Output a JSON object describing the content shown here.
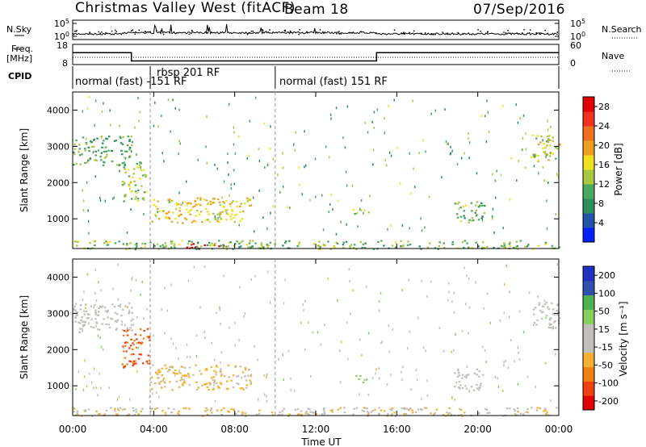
{
  "header": {
    "station": "Christmas Valley West (fitACF)",
    "beam": "Beam 18",
    "date": "07/Sep/2016"
  },
  "left_labels": {
    "nsky": "N.Sky",
    "freq_line1": "Freq.",
    "freq_line2": "[MHz]",
    "cpid": "CPID"
  },
  "right_labels": {
    "nsearch": "N.Search",
    "nave": "Nave"
  },
  "cpid_segments": [
    {
      "label": "normal (fast) -151 RF",
      "start": 0.5,
      "end": 3.83
    },
    {
      "label": "rbsp 201 RF",
      "start": 3.83,
      "end": 10.0
    },
    {
      "label": "normal (fast) 151 RF",
      "start": 10.0,
      "end": 24.0
    }
  ],
  "colors": {
    "power_scale": [
      "#0020ff",
      "#1f55a8",
      "#2f8e5e",
      "#4aa860",
      "#a8c840",
      "#f0e020",
      "#f0a020",
      "#f07020",
      "#f03020",
      "#e00000"
    ],
    "velocity_scale": [
      "#e00000",
      "#f04010",
      "#f08010",
      "#f8b030",
      "#c0c0b8",
      "#c0c0b8",
      "#88d060",
      "#50b050",
      "#3050b0",
      "#2030c0"
    ]
  },
  "chart_data": [
    {
      "panel": "noise",
      "type": "line",
      "left_axis": {
        "label": "N.Sky",
        "ticks": [
          "10^5",
          "10^0"
        ]
      },
      "right_axis": {
        "label": "N.Search",
        "ticks": [
          "10^5",
          "10^0"
        ]
      }
    },
    {
      "panel": "frequency",
      "type": "line",
      "left_axis": {
        "label": "Freq. [MHz]",
        "ticks": [
          18,
          8
        ]
      },
      "right_axis": {
        "label": "Nave",
        "ticks": [
          60,
          0
        ]
      },
      "series": [
        {
          "name": "Freq.",
          "x": [
            0,
            2.9,
            2.9,
            15.0,
            15.0,
            24.0
          ],
          "y": [
            14,
            14,
            9.5,
            9.5,
            14,
            14
          ]
        }
      ]
    },
    {
      "panel": "power",
      "type": "heatmap",
      "xlabel": "",
      "ylabel": "Slant Range [km]",
      "yticks": [
        1000,
        2000,
        3000,
        4000
      ],
      "ylim": [
        180,
        4500
      ],
      "colorbar": {
        "label": "Power [dB]",
        "ticks": [
          4,
          8,
          12,
          16,
          20,
          24,
          28
        ],
        "range": [
          0,
          30
        ]
      },
      "regions": [
        {
          "t0": 0.0,
          "t1": 2.9,
          "r0": 2500,
          "r1": 3300,
          "level": 10
        },
        {
          "t0": 2.4,
          "t1": 3.6,
          "r0": 1500,
          "r1": 2600,
          "level": 13
        },
        {
          "t0": 3.8,
          "t1": 8.8,
          "r0": 900,
          "r1": 1600,
          "level": 17
        },
        {
          "t0": 5.5,
          "t1": 7.5,
          "r0": 200,
          "r1": 350,
          "level": 28
        },
        {
          "t0": 0.0,
          "t1": 24.0,
          "r0": 180,
          "r1": 420,
          "level": 12
        },
        {
          "t0": 13.8,
          "t1": 14.6,
          "r0": 1100,
          "r1": 1300,
          "level": 14
        },
        {
          "t0": 18.8,
          "t1": 20.3,
          "r0": 900,
          "r1": 1500,
          "level": 12
        },
        {
          "t0": 22.6,
          "t1": 24.0,
          "r0": 2600,
          "r1": 3400,
          "level": 15
        }
      ]
    },
    {
      "panel": "velocity",
      "type": "heatmap",
      "xlabel": "Time UT",
      "ylabel": "Slant Range [km]",
      "xticks": [
        "00:00",
        "04:00",
        "08:00",
        "12:00",
        "16:00",
        "20:00",
        "00:00"
      ],
      "yticks": [
        1000,
        2000,
        3000,
        4000
      ],
      "ylim": [
        180,
        4500
      ],
      "colorbar": {
        "label": "Velocity [m s^-1]",
        "ticks": [
          200,
          100,
          50,
          15,
          -15,
          -50,
          -100,
          -200
        ],
        "range": [
          -250,
          250
        ]
      },
      "regions": [
        {
          "t0": 0.0,
          "t1": 3.0,
          "r0": 2500,
          "r1": 3300,
          "level": 0
        },
        {
          "t0": 2.4,
          "t1": 3.8,
          "r0": 1500,
          "r1": 2600,
          "level": -150
        },
        {
          "t0": 3.8,
          "t1": 8.8,
          "r0": 900,
          "r1": 1600,
          "level": -60
        },
        {
          "t0": 0.0,
          "t1": 24.0,
          "r0": 180,
          "r1": 420,
          "level": -40
        },
        {
          "t0": 13.8,
          "t1": 14.6,
          "r0": 1100,
          "r1": 1300,
          "level": 60
        },
        {
          "t0": 18.8,
          "t1": 20.3,
          "r0": 900,
          "r1": 1500,
          "level": 0
        },
        {
          "t0": 22.6,
          "t1": 24.0,
          "r0": 2600,
          "r1": 3400,
          "level": 0
        }
      ]
    }
  ]
}
